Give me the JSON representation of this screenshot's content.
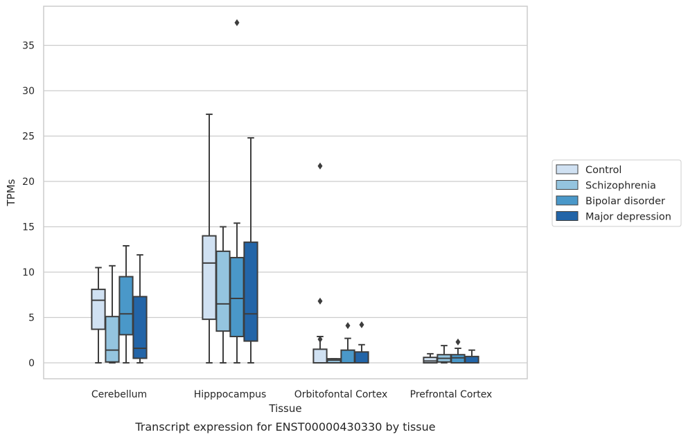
{
  "caption": "Transcript expression for ENST00000430330 by tissue",
  "chart_data": {
    "type": "box",
    "xlabel": "Tissue",
    "ylabel": "TPMs",
    "ylim": [
      -1.8,
      39
    ],
    "yticks": [
      0,
      5,
      10,
      15,
      20,
      25,
      30,
      35
    ],
    "grid": true,
    "legend_position": "right",
    "categories": [
      "Cerebellum",
      "Hipppocampus",
      "Orbitofontal Cortex",
      "Prefrontal Cortex"
    ],
    "series": [
      {
        "name": "Control",
        "color": "#d0e1f2",
        "boxes": [
          {
            "whislo": 0,
            "q1": 3.7,
            "med": 6.9,
            "q3": 8.1,
            "whishi": 10.5,
            "fliers": []
          },
          {
            "whislo": 0,
            "q1": 4.8,
            "med": 11.0,
            "q3": 14.0,
            "whishi": 27.4,
            "fliers": []
          },
          {
            "whislo": 0,
            "q1": 0,
            "med": 0,
            "q3": 1.5,
            "whishi": 2.9,
            "fliers": [
              21.7,
              6.8,
              2.6
            ]
          },
          {
            "whislo": 0,
            "q1": 0,
            "med": 0.2,
            "q3": 0.6,
            "whishi": 1.0,
            "fliers": []
          }
        ]
      },
      {
        "name": "Schizophrenia",
        "color": "#94c4df",
        "boxes": [
          {
            "whislo": 0,
            "q1": 0.1,
            "med": 1.4,
            "q3": 5.1,
            "whishi": 10.7,
            "fliers": []
          },
          {
            "whislo": 0,
            "q1": 3.5,
            "med": 6.5,
            "q3": 12.3,
            "whishi": 15.0,
            "fliers": []
          },
          {
            "whislo": 0,
            "q1": 0,
            "med": 0.3,
            "q3": 0.45,
            "whishi": 0.45,
            "fliers": []
          },
          {
            "whislo": 0,
            "q1": 0.1,
            "med": 0.5,
            "q3": 0.9,
            "whishi": 1.9,
            "fliers": []
          }
        ]
      },
      {
        "name": "Bipolar disorder",
        "color": "#4a98c9",
        "boxes": [
          {
            "whislo": 0,
            "q1": 3.1,
            "med": 5.4,
            "q3": 9.5,
            "whishi": 12.9,
            "fliers": []
          },
          {
            "whislo": 0,
            "q1": 2.9,
            "med": 7.1,
            "q3": 11.6,
            "whishi": 15.4,
            "fliers": [
              37.5
            ]
          },
          {
            "whislo": 0,
            "q1": 0,
            "med": 0,
            "q3": 1.4,
            "whishi": 2.7,
            "fliers": [
              4.1
            ]
          },
          {
            "whislo": 0,
            "q1": 0,
            "med": 0.55,
            "q3": 0.9,
            "whishi": 1.6,
            "fliers": [
              2.3
            ]
          }
        ]
      },
      {
        "name": "Major depression",
        "color": "#2365a8",
        "boxes": [
          {
            "whislo": 0,
            "q1": 0.5,
            "med": 1.6,
            "q3": 7.3,
            "whishi": 11.9,
            "fliers": []
          },
          {
            "whislo": 0,
            "q1": 2.4,
            "med": 5.4,
            "q3": 13.3,
            "whishi": 24.8,
            "fliers": []
          },
          {
            "whislo": 0,
            "q1": 0,
            "med": 0,
            "q3": 1.2,
            "whishi": 2.0,
            "fliers": [
              4.2
            ]
          },
          {
            "whislo": 0,
            "q1": 0,
            "med": 0,
            "q3": 0.7,
            "whishi": 1.4,
            "fliers": []
          }
        ]
      }
    ]
  }
}
